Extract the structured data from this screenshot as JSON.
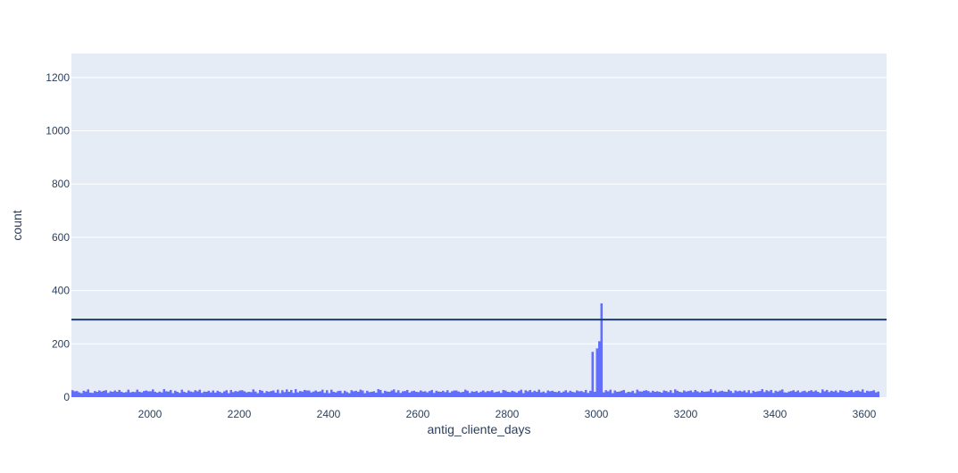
{
  "chart_data": {
    "type": "bar",
    "chart_kind": "histogram",
    "xlabel": "antig_cliente_days",
    "ylabel": "count",
    "xlim": [
      1824,
      3650
    ],
    "ylim": [
      0,
      1290
    ],
    "xticks": [
      2000,
      2200,
      2400,
      2600,
      2800,
      3000,
      3200,
      3400,
      3600
    ],
    "yticks": [
      0,
      200,
      400,
      600,
      800,
      1000,
      1200
    ],
    "grid": true,
    "legend": "none",
    "bin_width": 5,
    "bin_start": 1824,
    "reference_line": {
      "orientation": "horizontal",
      "y": 291
    },
    "colors": {
      "bar": "#636efa",
      "plot_bg": "#e5ecf6",
      "grid": "#ffffff",
      "axis_text": "#2a3f5f",
      "reference_line": "#1f3a6e"
    },
    "values": [
      26,
      22,
      23,
      18,
      15,
      24,
      21,
      29,
      17,
      16,
      23,
      20,
      25,
      21,
      24,
      26,
      16,
      22,
      20,
      25,
      20,
      27,
      20,
      17,
      19,
      28,
      18,
      20,
      19,
      28,
      20,
      18,
      23,
      25,
      22,
      22,
      29,
      20,
      17,
      21,
      18,
      30,
      22,
      21,
      27,
      15,
      24,
      20,
      16,
      28,
      20,
      17,
      25,
      21,
      19,
      26,
      22,
      28,
      16,
      21,
      20,
      24,
      18,
      25,
      17,
      24,
      20,
      16,
      22,
      26,
      15,
      27,
      19,
      23,
      21,
      25,
      26,
      22,
      18,
      20,
      19,
      29,
      21,
      15,
      27,
      24,
      16,
      23,
      20,
      23,
      25,
      17,
      28,
      15,
      26,
      19,
      29,
      20,
      27,
      16,
      30,
      18,
      23,
      21,
      27,
      25,
      25,
      18,
      21,
      25,
      20,
      22,
      28,
      16,
      26,
      15,
      28,
      20,
      18,
      23,
      24,
      15,
      24,
      19,
      15,
      26,
      22,
      24,
      20,
      28,
      25,
      15,
      24,
      19,
      20,
      22,
      17,
      30,
      27,
      15,
      24,
      21,
      20,
      25,
      29,
      18,
      26,
      16,
      22,
      23,
      27,
      17,
      22,
      24,
      20,
      19,
      25,
      21,
      22,
      18,
      23,
      27,
      16,
      24,
      21,
      20,
      24,
      19,
      26,
      17,
      22,
      25,
      25,
      21,
      18,
      20,
      28,
      24,
      16,
      22,
      20,
      23,
      17,
      21,
      25,
      19,
      23,
      22,
      26,
      18,
      20,
      22,
      16,
      27,
      25,
      20,
      19,
      24,
      21,
      17,
      23,
      28,
      15,
      26,
      22,
      27,
      19,
      24,
      20,
      28,
      18,
      21,
      16,
      25,
      22,
      24,
      20,
      19,
      23,
      17,
      21,
      26,
      18,
      24,
      20,
      18,
      25,
      22,
      23,
      19,
      27,
      16,
      24,
      170,
      20,
      183,
      210,
      352,
      18,
      26,
      22,
      28,
      15,
      25,
      20,
      21,
      24,
      27,
      16,
      20,
      19,
      24,
      15,
      28,
      22,
      21,
      24,
      26,
      23,
      18,
      24,
      20,
      22,
      20,
      17,
      25,
      23,
      19,
      26,
      16,
      29,
      24,
      20,
      18,
      25,
      21,
      23,
      25,
      19,
      27,
      22,
      18,
      24,
      20,
      21,
      22,
      30,
      17,
      25,
      19,
      22,
      24,
      21,
      20,
      28,
      23,
      16,
      25,
      22,
      24,
      21,
      25,
      18,
      26,
      15,
      24,
      20,
      22,
      23,
      30,
      19,
      26,
      22,
      27,
      16,
      24,
      21,
      25,
      29,
      18,
      17,
      21,
      23,
      26,
      20,
      25,
      18,
      22,
      24,
      19,
      23,
      26,
      21,
      25,
      20,
      16,
      29,
      22,
      27,
      19,
      24,
      21,
      25,
      18,
      26,
      24,
      22,
      20,
      23,
      27,
      19,
      24,
      25,
      21,
      29,
      17,
      24,
      22,
      23,
      26,
      18,
      21
    ]
  }
}
